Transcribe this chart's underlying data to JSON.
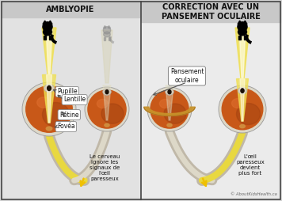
{
  "bg_color": "#d4d4d4",
  "left_panel_bg": "#e2e2e2",
  "right_panel_bg": "#ebebeb",
  "header_bg": "#c8c8c8",
  "border_color": "#444444",
  "divider_color": "#444444",
  "title_left": "AMBLYOPIE",
  "title_right": "CORRECTION AVEC UN\nPANSEMENT OCULAIRE",
  "label_pupille": "Pupille",
  "label_lentille": "Lentille",
  "label_retine": "Rétine",
  "label_fovea": "Fovéa",
  "label_pansement": "Pansement\noculaire",
  "text_cerveau": "Le cerveau\nignore les\nsignaux de\nl'œil\nparesseux",
  "text_oeil": "L'œil\nparesseux\ndevient\nplus fort",
  "copyright": "© AboutKidsHealth.ca",
  "sclera_color": "#ddd8c8",
  "eye_orange": "#c85818",
  "eye_orange_dark": "#a04010",
  "eye_orange_light": "#e07030",
  "cornea_color": "#d8cdb8",
  "pupil_color": "#1a1008",
  "nerve_outer": "#c0b8a8",
  "nerve_inner": "#ddd8c8",
  "nerve_yellow": "#e8d840",
  "fovea_color": "#d09040",
  "beam_yellow": "#f0e050",
  "beam_white": "#fffce0",
  "cat_black": "#000000",
  "cat_gray": "#909090",
  "patch_tan": "#c8922a",
  "arrow_yellow": "#f0c000",
  "label_bg": "#ffffff",
  "label_edge": "#888888",
  "font_title": 7,
  "font_label": 5.5,
  "font_text": 5,
  "font_copy": 3.8
}
